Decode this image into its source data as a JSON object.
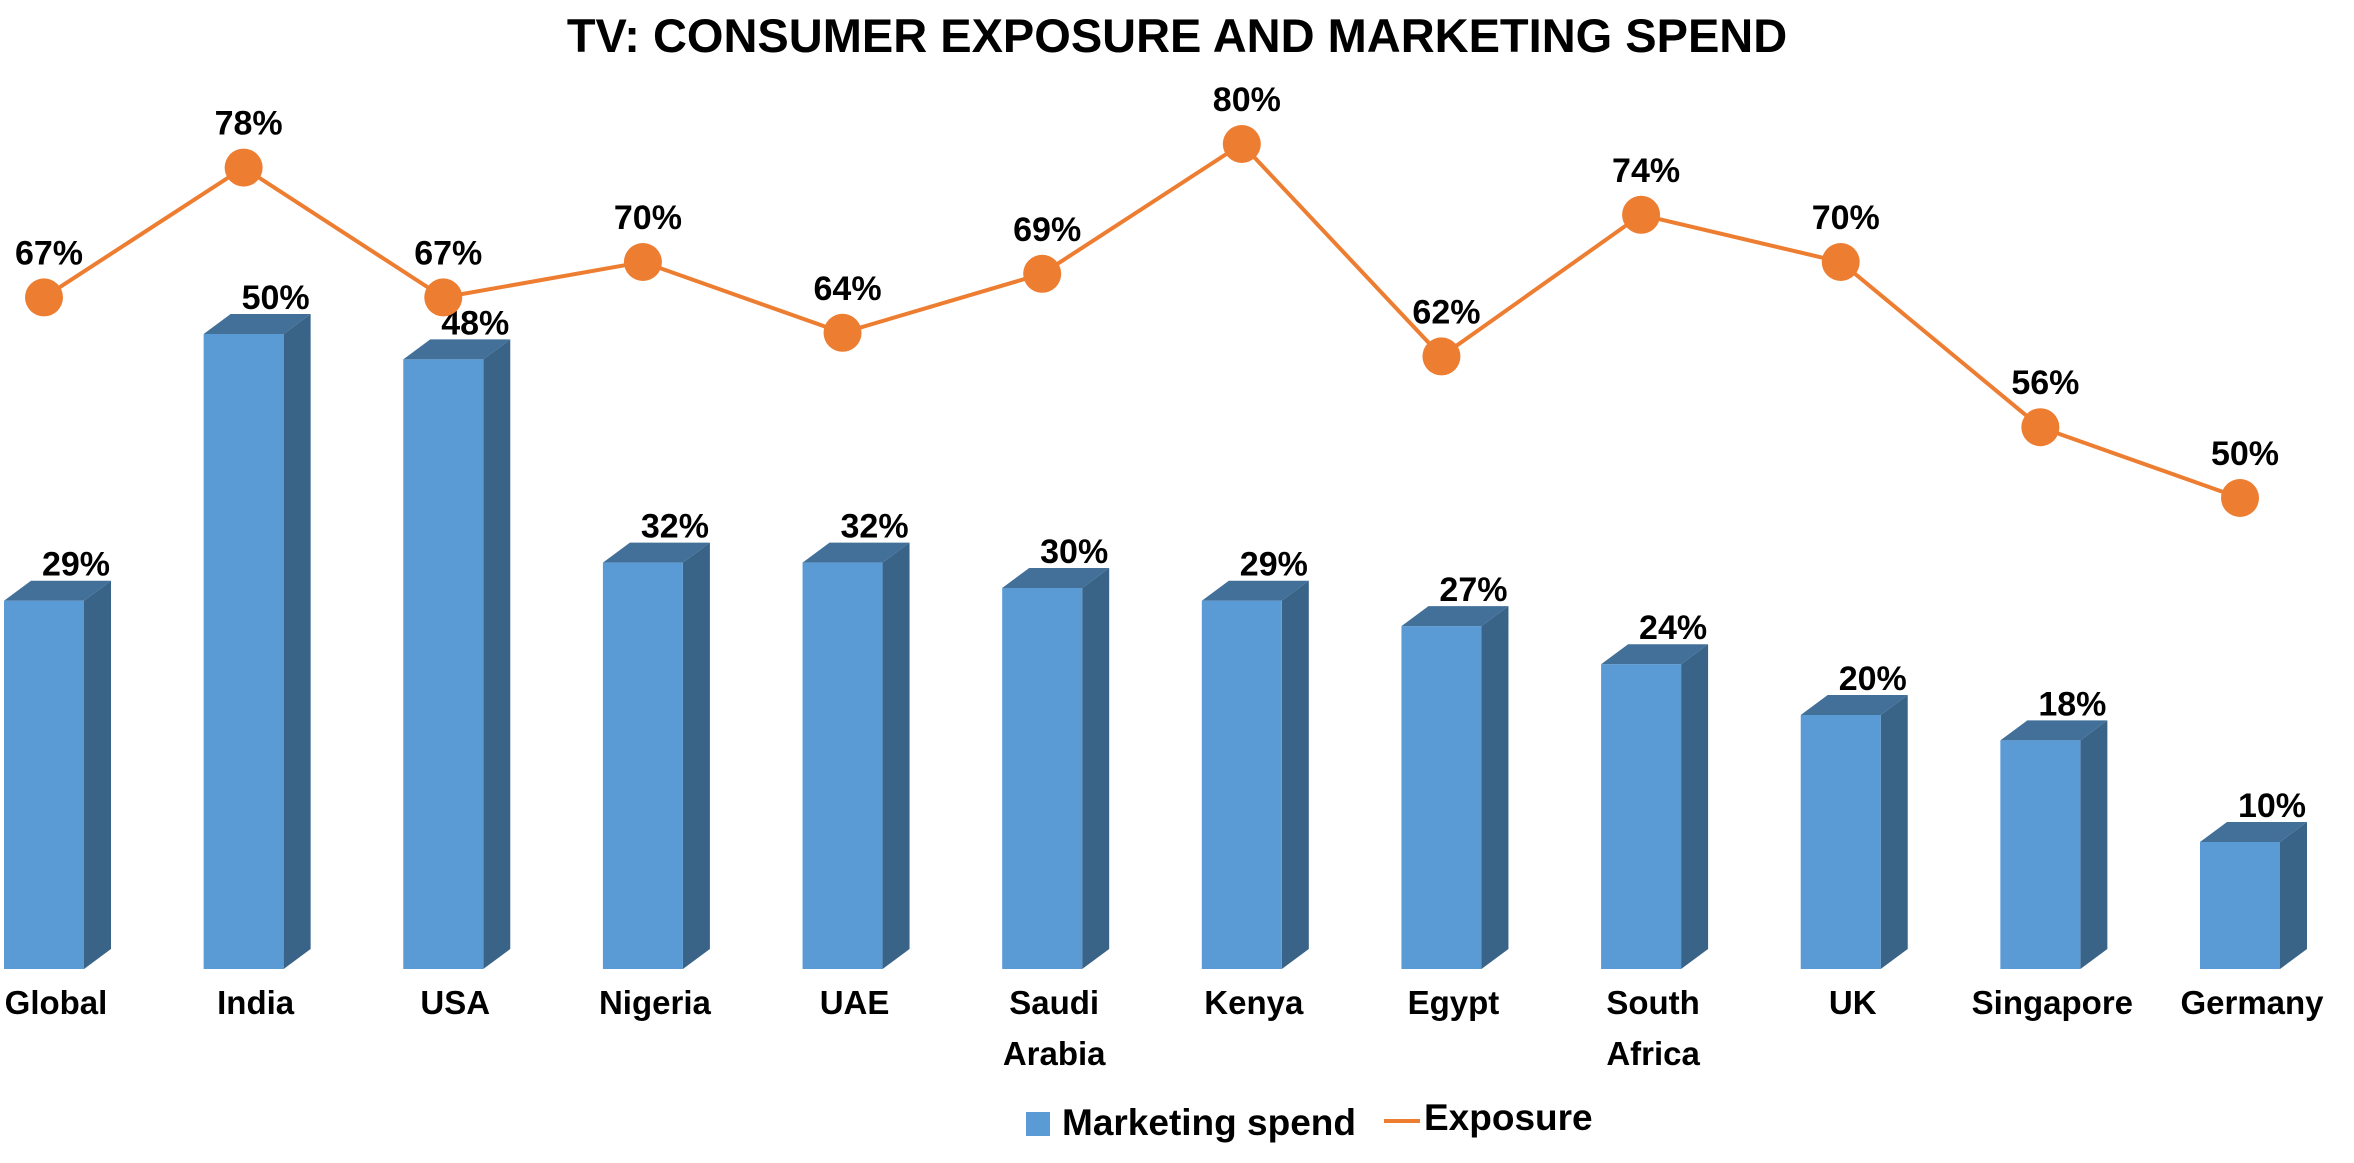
{
  "chart_data": {
    "type": "bar",
    "title": "TV: CONSUMER EXPOSURE AND MARKETING SPEND",
    "categories": [
      [
        "Global"
      ],
      [
        "India"
      ],
      [
        "USA"
      ],
      [
        "Nigeria"
      ],
      [
        "UAE"
      ],
      [
        "Saudi",
        "Arabia"
      ],
      [
        "Kenya"
      ],
      [
        "Egypt"
      ],
      [
        "South",
        "Africa"
      ],
      [
        "UK"
      ],
      [
        "Singapore"
      ],
      [
        "Germany"
      ]
    ],
    "series": [
      {
        "name": "Marketing spend",
        "type": "bar",
        "color": "#5B9BD5",
        "values": [
          29,
          50,
          48,
          32,
          32,
          30,
          29,
          27,
          24,
          20,
          18,
          10
        ],
        "labels": [
          "29%",
          "50%",
          "48%",
          "32%",
          "32%",
          "30%",
          "29%",
          "27%",
          "24%",
          "20%",
          "18%",
          "10%"
        ]
      },
      {
        "name": "Exposure",
        "type": "line",
        "color": "#ED7D31",
        "values": [
          67,
          78,
          67,
          70,
          64,
          69,
          80,
          62,
          74,
          70,
          56,
          50
        ],
        "labels": [
          "67%",
          "78%",
          "67%",
          "70%",
          "64%",
          "69%",
          "80%",
          "62%",
          "74%",
          "70%",
          "56%",
          "50%"
        ]
      }
    ],
    "unit": "%",
    "legend_position": "bottom",
    "grid": false,
    "y_axis_visible": false
  }
}
